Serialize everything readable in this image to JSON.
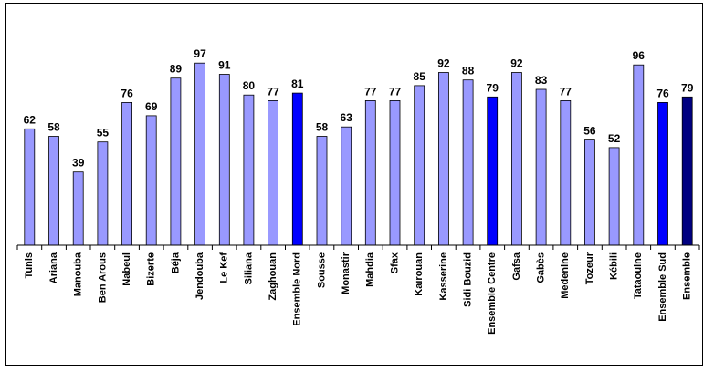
{
  "chart_data": {
    "type": "bar",
    "title": "",
    "xlabel": "",
    "ylabel": "",
    "ylim": [
      0,
      100
    ],
    "grid": false,
    "legend": "none",
    "categories": [
      "Tunis",
      "Ariana",
      "Manouba",
      "Ben Arous",
      "Nabeul",
      "Bizerte",
      "Béja",
      "Jendouba",
      "Le Kef",
      "Siliana",
      "Zaghouan",
      "Ensemble Nord",
      "Sousse",
      "Monastir",
      "Mahdia",
      "Sfax",
      "Kairouan",
      "Kasserine",
      "Sidi Bouzid",
      "Ensemble Centre",
      "Gafsa",
      "Gabès",
      "Medenine",
      "Tozeur",
      "Kébili",
      "Tataouine",
      "Ensemble Sud",
      "Ensemble"
    ],
    "values": [
      62,
      58,
      39,
      55,
      76,
      69,
      89,
      97,
      91,
      80,
      77,
      81,
      58,
      63,
      77,
      77,
      85,
      92,
      88,
      79,
      92,
      83,
      77,
      56,
      52,
      96,
      76,
      79
    ],
    "bar_kinds": [
      "gov",
      "gov",
      "gov",
      "gov",
      "gov",
      "gov",
      "gov",
      "gov",
      "gov",
      "gov",
      "gov",
      "region",
      "gov",
      "gov",
      "gov",
      "gov",
      "gov",
      "gov",
      "gov",
      "region",
      "gov",
      "gov",
      "gov",
      "gov",
      "gov",
      "gov",
      "region",
      "total"
    ],
    "colors": {
      "gov": "#9999ff",
      "region": "#0000ff",
      "total": "#000080",
      "outline": "#000000",
      "axis": "#000000"
    }
  }
}
